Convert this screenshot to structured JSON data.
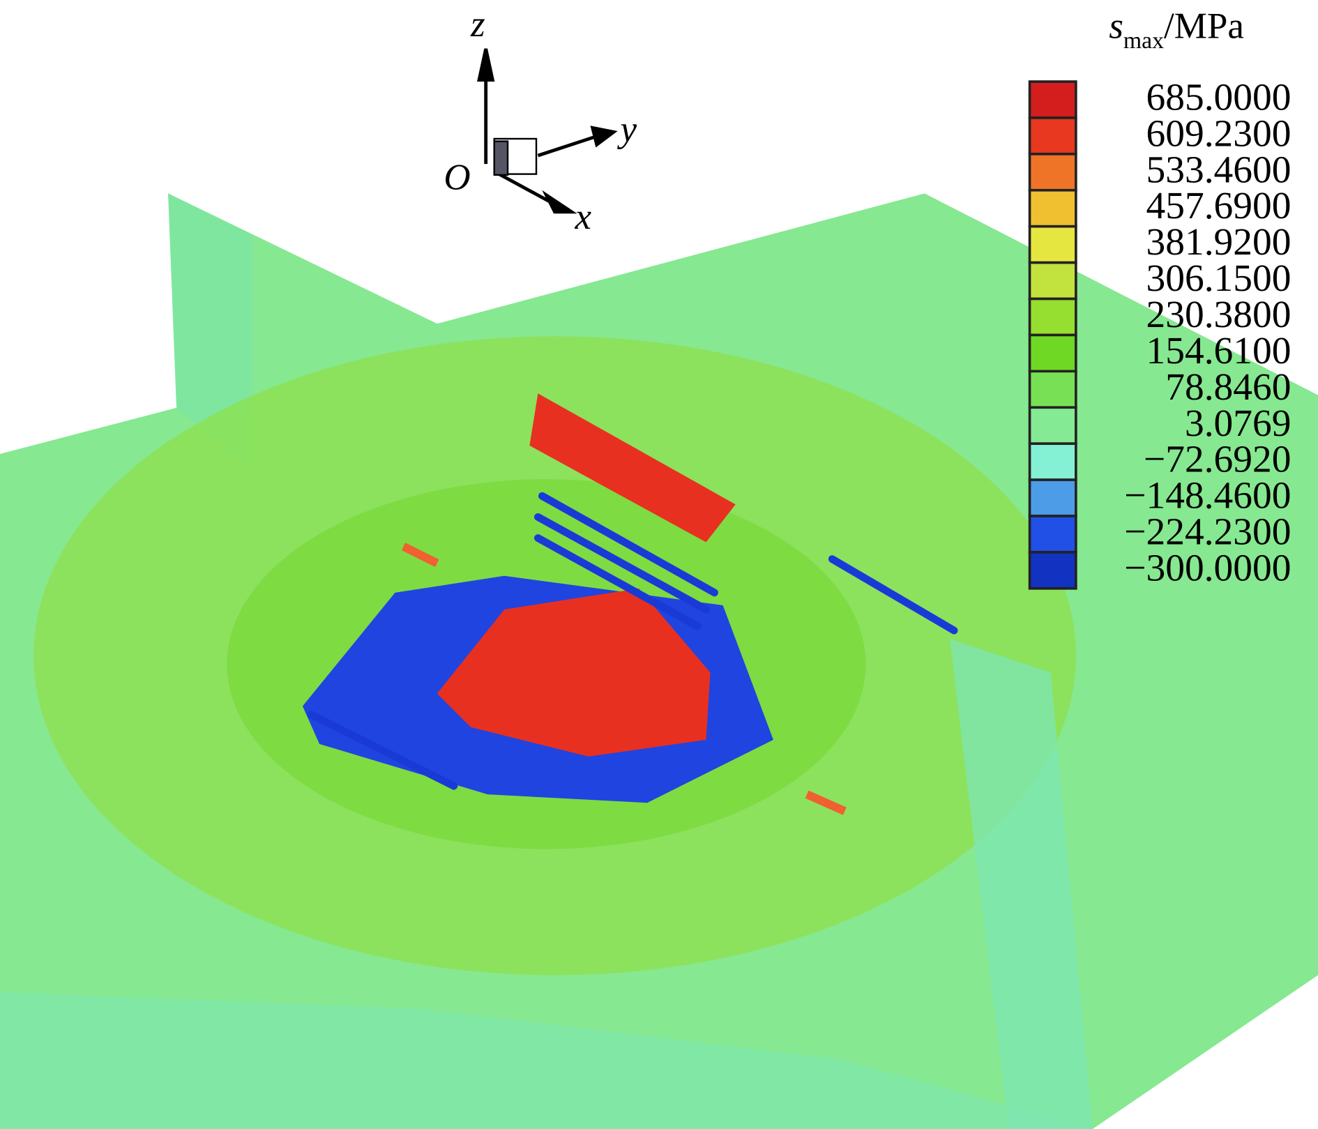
{
  "legend": {
    "title": {
      "symbol": "s",
      "subscript": "max",
      "unit": "/MPa"
    },
    "levels": [
      "685.0000",
      "609.2300",
      "533.4600",
      "457.6900",
      "381.9200",
      "306.1500",
      "230.3800",
      "154.6100",
      "78.8460",
      "3.0769",
      "−72.6920",
      "−148.4600",
      "−224.2300",
      "−300.0000"
    ],
    "colors": [
      "#d41e1e",
      "#e8381f",
      "#f07428",
      "#f0c030",
      "#e6e640",
      "#c2e23e",
      "#96de30",
      "#6ed824",
      "#78e054",
      "#84ea94",
      "#84f0d4",
      "#4c9ce8",
      "#2050e6",
      "#1232c2"
    ]
  },
  "axes": {
    "z": "z",
    "y": "y",
    "x": "x",
    "origin": "O"
  }
}
